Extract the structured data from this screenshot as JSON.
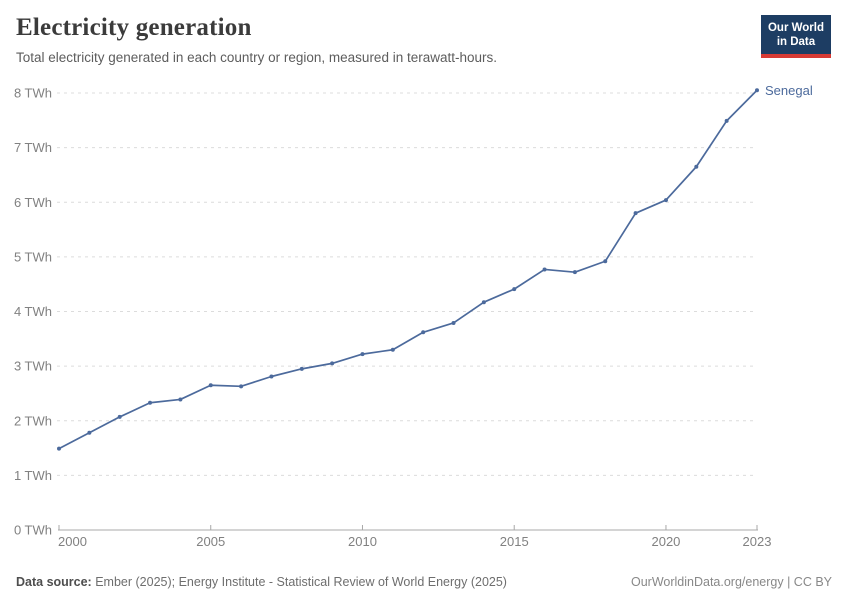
{
  "header": {
    "title": "Electricity generation",
    "subtitle": "Total electricity generated in each country or region, measured in terawatt-hours.",
    "logo": {
      "line1": "Our World",
      "line2": "in Data",
      "bg_color": "#1d3d63",
      "accent_color": "#d73a34"
    }
  },
  "palette": {
    "line": "#4c6a9c",
    "grid": "#dcdcdc",
    "axis": "#a8a8a8",
    "tick_label": "#818181"
  },
  "chart_data": {
    "type": "line",
    "title": "Electricity generation",
    "xlabel": "",
    "ylabel": "TWh",
    "xlim": [
      2000,
      2023
    ],
    "ylim": [
      0,
      8
    ],
    "grid": "horizontal-dashed",
    "legend_position": "end-of-line-label",
    "x_ticks": [
      {
        "value": 2000,
        "label": "2000"
      },
      {
        "value": 2005,
        "label": "2005"
      },
      {
        "value": 2010,
        "label": "2010"
      },
      {
        "value": 2015,
        "label": "2015"
      },
      {
        "value": 2020,
        "label": "2020"
      },
      {
        "value": 2023,
        "label": "2023"
      }
    ],
    "y_ticks": [
      {
        "value": 0,
        "label": "0 TWh"
      },
      {
        "value": 1,
        "label": "1 TWh"
      },
      {
        "value": 2,
        "label": "2 TWh"
      },
      {
        "value": 3,
        "label": "3 TWh"
      },
      {
        "value": 4,
        "label": "4 TWh"
      },
      {
        "value": 5,
        "label": "5 TWh"
      },
      {
        "value": 6,
        "label": "6 TWh"
      },
      {
        "value": 7,
        "label": "7 TWh"
      },
      {
        "value": 8,
        "label": "8 TWh"
      }
    ],
    "series": [
      {
        "name": "Senegal",
        "color": "#4c6a9c",
        "x": [
          2000,
          2001,
          2002,
          2003,
          2004,
          2005,
          2006,
          2007,
          2008,
          2009,
          2010,
          2011,
          2012,
          2013,
          2014,
          2015,
          2016,
          2017,
          2018,
          2019,
          2020,
          2021,
          2022,
          2023
        ],
        "values": [
          1.49,
          1.78,
          2.07,
          2.33,
          2.39,
          2.65,
          2.63,
          2.81,
          2.95,
          3.05,
          3.22,
          3.3,
          3.62,
          3.79,
          4.17,
          4.41,
          4.77,
          4.72,
          4.92,
          5.8,
          6.04,
          6.65,
          7.49,
          8.05
        ]
      }
    ]
  },
  "footer": {
    "source_label": "Data source:",
    "source_text": " Ember (2025); Energy Institute - Statistical Review of World Energy (2025)",
    "rights": "OurWorldinData.org/energy | CC BY"
  }
}
